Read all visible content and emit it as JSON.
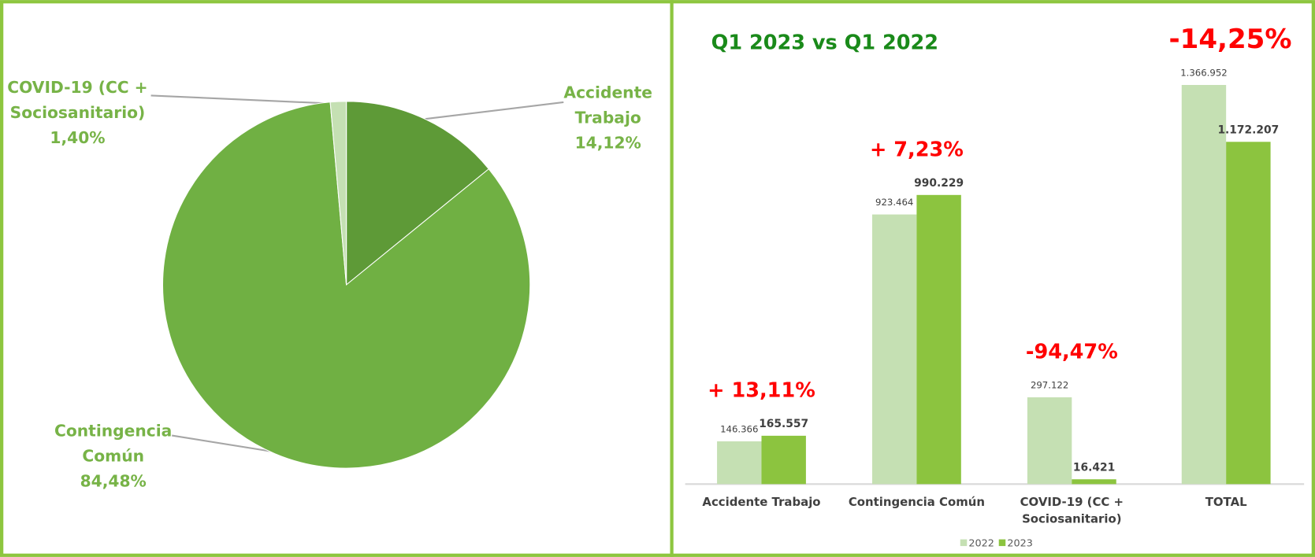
{
  "chart_data": [
    {
      "type": "pie",
      "categories": [
        "Accidente Trabajo",
        "Contingencia Común",
        "COVID-19 (CC + Sociosanitario)"
      ],
      "values": [
        14.12,
        84.48,
        1.4
      ],
      "value_labels": [
        "14,12%",
        "84,48%",
        "1,40%"
      ],
      "colors": [
        "#5e9a37",
        "#70b043",
        "#c5e0b3"
      ]
    },
    {
      "type": "bar",
      "title": "Q1 2023 vs Q1 2022",
      "categories": [
        "Accidente Trabajo",
        "Contingencia Común",
        "COVID-19 (CC + Sociosanitario)",
        "TOTAL"
      ],
      "series": [
        {
          "name": "2022",
          "color": "#c5e0b3",
          "values": [
            146366,
            923464,
            297122,
            1366952
          ],
          "value_labels": [
            "146.366",
            "923.464",
            "297.122",
            "1.366.952"
          ]
        },
        {
          "name": "2023",
          "color": "#8cc43f",
          "values": [
            165557,
            990229,
            16421,
            1172207
          ],
          "value_labels": [
            "165.557",
            "990.229",
            "16.421",
            "1.172.207"
          ]
        }
      ],
      "annotations": [
        "+ 13,11%",
        "+ 7,23%",
        "-94,47%",
        "-14,25%"
      ],
      "ylim": [
        0,
        1500000
      ]
    }
  ]
}
